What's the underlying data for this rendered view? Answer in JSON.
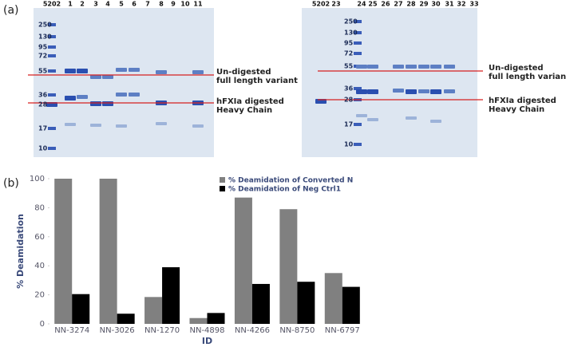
{
  "figure": {
    "panel_a_label": "(a)",
    "panel_b_label": "(b)"
  },
  "gels": {
    "left": {
      "lanes": [
        "5202",
        "1",
        "2",
        "3",
        "4",
        "5",
        "6",
        "7",
        "8",
        "9",
        "10",
        "11"
      ],
      "markers": [
        "250",
        "130",
        "95",
        "72",
        "55",
        "36",
        "28",
        "17",
        "10"
      ],
      "annotations": [
        "Un-digested",
        "full length variant",
        "hFXIa digested",
        "Heavy Chain"
      ]
    },
    "right": {
      "lanes": [
        "5202",
        "23",
        "24",
        "25",
        "26",
        "27",
        "28",
        "29",
        "30",
        "31",
        "32",
        "33"
      ],
      "markers": [
        "250",
        "130",
        "95",
        "72",
        "55",
        "36",
        "28",
        "17",
        "10"
      ],
      "annotations": [
        "Un-digested",
        "full length variant",
        "hFXIa digested",
        "Heavy Chain"
      ]
    }
  },
  "chart_data": {
    "type": "bar",
    "xlabel": "ID",
    "ylabel": "% Deamidation",
    "categories": [
      "NN-3274",
      "NN-3026",
      "NN-1270",
      "NN-4898",
      "NN-4266",
      "NN-8750",
      "NN-6797"
    ],
    "series": [
      {
        "name": "% Deamidation of Converted N",
        "color": "#808080",
        "values": [
          100,
          100,
          18.5,
          4,
          87,
          79,
          35
        ]
      },
      {
        "name": "% Deamidation of Neg Ctrl1",
        "color": "#000000",
        "values": [
          20.5,
          7,
          39,
          7.5,
          27.5,
          29,
          25.5
        ]
      }
    ],
    "ylim": [
      0,
      100
    ],
    "yticks": [
      0,
      20,
      40,
      60,
      80,
      100
    ],
    "legend": "top"
  }
}
